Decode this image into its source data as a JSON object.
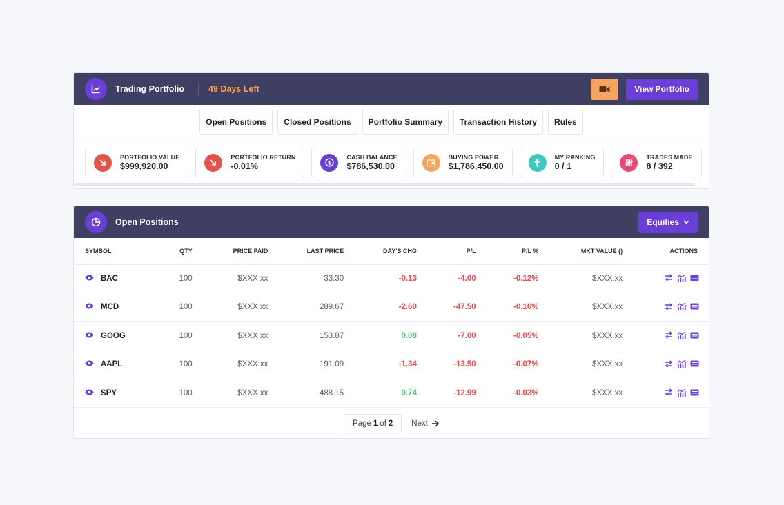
{
  "portfolio": {
    "title": "Trading Portfolio",
    "days_left": "49 Days Left",
    "view_button": "View Portfolio",
    "tabs": [
      "Open Positions",
      "Closed Positions",
      "Portfolio Summary",
      "Transaction History",
      "Rules"
    ],
    "stats": [
      {
        "label": "PORTFOLIO VALUE",
        "value": "$999,920.00",
        "icon": "trend-down-icon",
        "color": "#e0564a"
      },
      {
        "label": "PORTFOLIO RETURN",
        "value": "-0.01%",
        "icon": "trend-down-icon",
        "color": "#e0564a"
      },
      {
        "label": "CASH BALANCE",
        "value": "$786,530.00",
        "icon": "dollar-icon",
        "color": "#6a3fd6"
      },
      {
        "label": "BUYING POWER",
        "value": "$1,786,450.00",
        "icon": "wallet-icon",
        "color": "#f6a560"
      },
      {
        "label": "MY RANKING",
        "value": "0 / 1",
        "icon": "trophy-icon",
        "color": "#3ec8c0"
      },
      {
        "label": "TRADES MADE",
        "value": "8 / 392",
        "icon": "tally-icon",
        "color": "#e84a72"
      }
    ]
  },
  "positions": {
    "title": "Open Positions",
    "filter": "Equities",
    "columns": [
      "SYMBOL",
      "QTY",
      "PRICE PAID",
      "LAST PRICE",
      "DAY'S CHG",
      "P/L",
      "P/L %",
      "MKT VALUE ()",
      "ACTIONS"
    ],
    "rows": [
      {
        "symbol": "BAC",
        "qty": "100",
        "price_paid": "$XXX.xx",
        "last_price": "33.30",
        "days_chg": "-0.13",
        "days_dir": "down",
        "pl": "-4.00",
        "pl_pct": "-0.12%",
        "mkt_value": "$XXX.xx"
      },
      {
        "symbol": "MCD",
        "qty": "100",
        "price_paid": "$XXX.xx",
        "last_price": "289.67",
        "days_chg": "-2.60",
        "days_dir": "down",
        "pl": "-47.50",
        "pl_pct": "-0.16%",
        "mkt_value": "$XXX.xx"
      },
      {
        "symbol": "GOOG",
        "qty": "100",
        "price_paid": "$XXX.xx",
        "last_price": "153.87",
        "days_chg": "0.08",
        "days_dir": "up",
        "pl": "-7.00",
        "pl_pct": "-0.05%",
        "mkt_value": "$XXX.xx"
      },
      {
        "symbol": "AAPL",
        "qty": "100",
        "price_paid": "$XXX.xx",
        "last_price": "191.09",
        "days_chg": "-1.34",
        "days_dir": "down",
        "pl": "-13.50",
        "pl_pct": "-0.07%",
        "mkt_value": "$XXX.xx"
      },
      {
        "symbol": "SPY",
        "qty": "100",
        "price_paid": "$XXX.xx",
        "last_price": "488.15",
        "days_chg": "0.74",
        "days_dir": "up",
        "pl": "-12.99",
        "pl_pct": "-0.03%",
        "mkt_value": "$XXX.xx"
      }
    ],
    "pagination": {
      "page_word": "Page",
      "current": "1",
      "of_word": "of",
      "total": "2",
      "next": "Next"
    }
  },
  "colors": {
    "header_bg": "#3f3f64",
    "accent": "#6a3fd6",
    "orange": "#f6a560",
    "days_left": "#f5a04a",
    "negative": "#e5484d",
    "positive": "#4cc07a"
  }
}
